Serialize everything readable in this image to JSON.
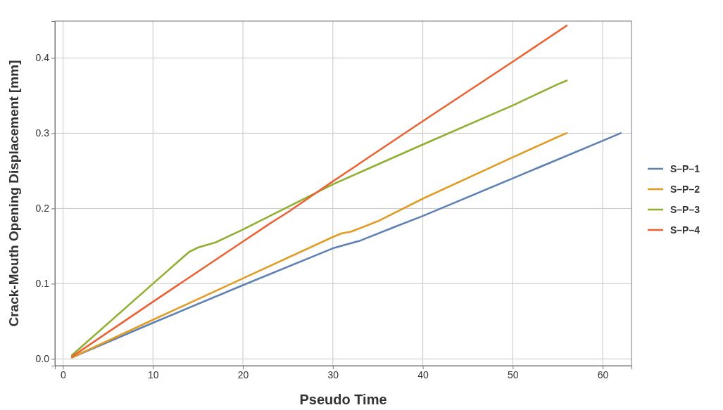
{
  "chart_data": {
    "type": "line",
    "xlabel": "Pseudo Time",
    "ylabel": "Crack-Mouth Opening Displacement [mm]",
    "xlim": [
      -0.9,
      63.2
    ],
    "xticks": [
      0,
      10,
      20,
      30,
      40,
      50,
      60
    ],
    "ylim": [
      -0.009,
      0.449
    ],
    "yticks": [
      {
        "value": 0,
        "label": "0.0"
      },
      0.1,
      0.2,
      0.3,
      0.4
    ],
    "grid": true,
    "legend": "right",
    "marker": "none",
    "line_style": "solid",
    "series": [
      {
        "name": "S–P–1",
        "color": "#5e81b5",
        "x": [
          1,
          10,
          20,
          30,
          33,
          37,
          40,
          50,
          60,
          62
        ],
        "values": [
          0.002,
          0.048,
          0.098,
          0.147,
          0.157,
          0.176,
          0.19,
          0.24,
          0.29,
          0.3
        ]
      },
      {
        "name": "S–P–2",
        "color": "#e19c24",
        "x": [
          1,
          10,
          20,
          30,
          31,
          32,
          35,
          40,
          50,
          55,
          56
        ],
        "values": [
          0.002,
          0.052,
          0.107,
          0.162,
          0.167,
          0.169,
          0.183,
          0.213,
          0.268,
          0.295,
          0.3
        ]
      },
      {
        "name": "S–P–3",
        "color": "#8fb032",
        "x": [
          1,
          10,
          14,
          15,
          17,
          20,
          30,
          40,
          50,
          55,
          56
        ],
        "values": [
          0.005,
          0.1,
          0.142,
          0.148,
          0.155,
          0.172,
          0.232,
          0.285,
          0.337,
          0.365,
          0.37
        ]
      },
      {
        "name": "S–P–4",
        "color": "#eb6235",
        "x": [
          1,
          10,
          20,
          23,
          25,
          30,
          40,
          50,
          56
        ],
        "values": [
          0.003,
          0.076,
          0.156,
          0.18,
          0.195,
          0.236,
          0.316,
          0.395,
          0.443
        ]
      }
    ]
  }
}
